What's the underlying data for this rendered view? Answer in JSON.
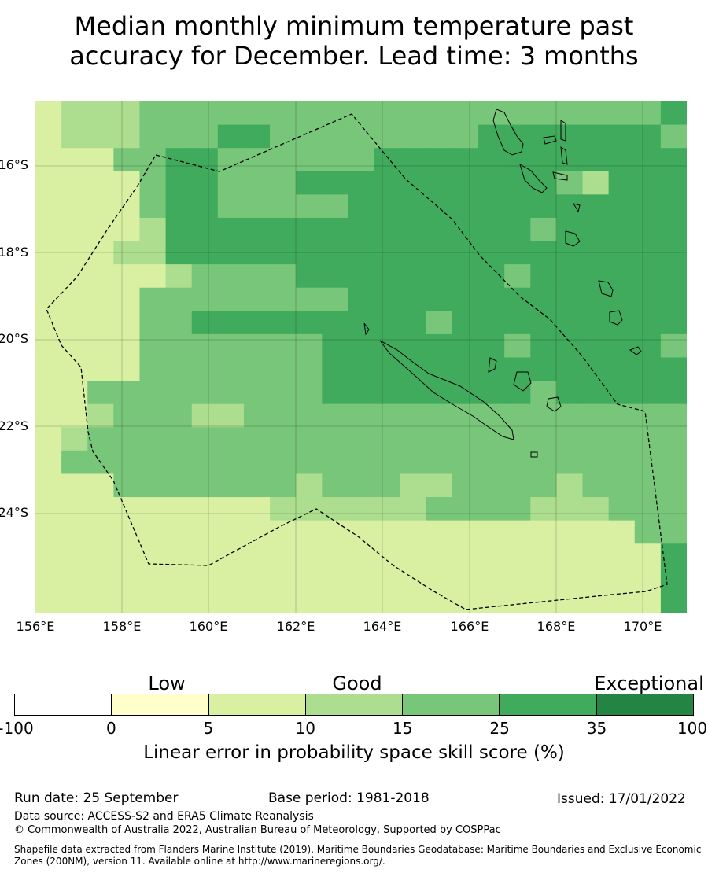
{
  "title_line1": "Median monthly minimum temperature past",
  "title_line2": "accuracy for December. Lead time: 3 months",
  "lat_labels": [
    "16°S",
    "18°S",
    "20°S",
    "22°S",
    "24°S"
  ],
  "lon_labels": [
    "156°E",
    "158°E",
    "160°E",
    "162°E",
    "164°E",
    "166°E",
    "168°E",
    "170°E"
  ],
  "colorbar": {
    "categories": [
      "Low",
      "Good",
      "Exceptional"
    ],
    "ticks": [
      "-100",
      "0",
      "5",
      "10",
      "15",
      "25",
      "35",
      "100"
    ],
    "colors": [
      "#ffffff",
      "#ffffcc",
      "#d9f0a3",
      "#addd8e",
      "#78c679",
      "#41ab5d",
      "#238443"
    ],
    "label": "Linear error in probability space skill score (%)"
  },
  "run_date": "Run date: 25 September",
  "base_period": "Base period: 1981-2018",
  "issued": "Issued: 17/01/2022",
  "data_source": "Data source: ACCESS-S2 and ERA5 Climate Reanalysis",
  "copyright": "© Commonwealth of Australia 2022, Australian Bureau of Meteorology, Supported by COSPPac",
  "shapefile_note": "Shapefile data extracted from Flanders Marine Institute (2019), Maritime Boundaries Geodatabase: Maritime Boundaries and Exclusive Economic Zones (200NM), version 11. Available online at http://www.marineregions.org/.",
  "grid_levels": [
    "2333444444444444444444445",
    "2333444554444444455555554",
    "2224455444444555555555555",
    "2222455444555555555543555",
    "2222455444445555555555555",
    "2222355555555555555455555",
    "2223355555555555555555555",
    "2222234444555555554555555",
    "2222444444445555555555555",
    "2222445555555554555555555",
    "2222444444455555554555554",
    "2222444444455555555555555",
    "2244444444455555555455555",
    "2234443344444444444444444",
    "2344444444444444444444444",
    "2444444444444444444444444",
    "2224444444344433444434444",
    "2222222223333334444333444",
    "2222222222222222222222244",
    "2222222222222222222222225",
    "2222222222222222222222225",
    "2222222222222222222222225"
  ]
}
